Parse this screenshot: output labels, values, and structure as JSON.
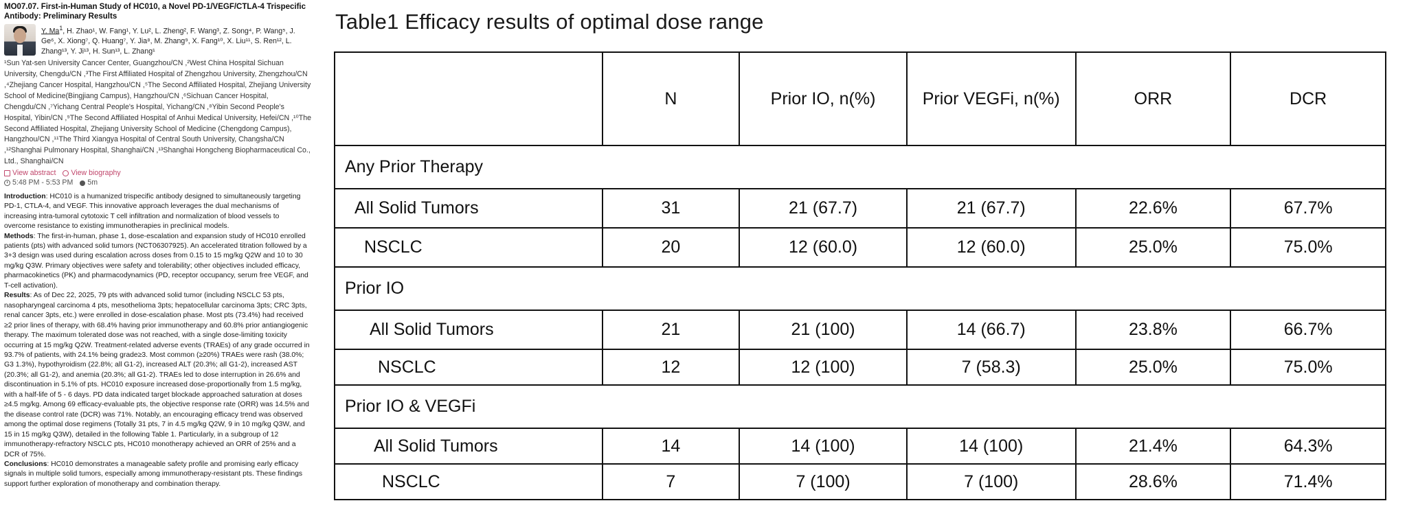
{
  "abstract": {
    "title": "MO07.07.  First-in-Human Study of HC010, a Novel PD-1/VEGF/CTLA-4 Trispecific Antibody: Preliminary Results",
    "first_author": "Y. Ma",
    "first_author_sup": "1",
    "authors_rest": ", H. Zhao¹, W. Fang¹, Y. Lu², L. Zheng², F. Wang³, Z. Song⁴, P. Wang⁵, J. Ge⁶, X. Xiong⁷, Q. Huang⁷, Y. Jia⁸, M. Zhang⁹, X. Fang¹⁰, X. Liu¹¹, S. Ren¹², L. Zhang¹³, Y. Ji¹³, H. Sun¹³, L. Zhang¹",
    "affiliations": "¹Sun Yat-sen University Cancer Center, Guangzhou/CN ,²West China Hospital Sichuan University, Chengdu/CN ,³The First Affiliated Hospital of Zhengzhou University, Zhengzhou/CN ,⁴Zhejiang Cancer Hospital, Hangzhou/CN ,⁵The Second Affiliated Hospital, Zhejiang University School of Medicine(Bingjiang Campus), Hangzhou/CN ,⁶Sichuan Cancer Hospital, Chengdu/CN ,⁷Yichang Central People's Hospital, Yichang/CN ,⁸Yibin Second People's Hospital, Yibin/CN ,⁹The Second Affiliated Hospital of Anhui Medical University, Hefei/CN ,¹⁰The Second Affiliated Hospital, Zhejiang University School of Medicine (Chengdong Campus), Hangzhou/CN ,¹¹The Third Xiangya Hospital of Central South University, Changsha/CN ,¹²Shanghai Pulmonary Hospital, Shanghai/CN ,¹³Shanghai Hongcheng Biopharmaceutical Co., Ltd., Shanghai/CN",
    "time": "5:48 PM - 5:53 PM",
    "duration": "5m",
    "view_abstract": "View abstract",
    "view_biography": "View biography",
    "intro_label": "Introduction",
    "intro_text": ": HC010 is a humanized trispecific antibody designed to simultaneously targeting PD-1, CTLA-4, and VEGF. This innovative approach leverages the dual mechanisms of increasing intra-tumoral cytotoxic T cell infiltration and normalization of blood vessels to overcome resistance to existing immunotherapies in preclinical models.",
    "methods_label": "Methods",
    "methods_text": ": The first-in-human, phase 1, dose-escalation and expansion study of HC010 enrolled patients (pts) with advanced solid tumors (NCT06307925). An accelerated titration followed by a 3+3 design was used during escalation across doses from 0.15 to 15 mg/kg Q2W and 10 to 30 mg/kg Q3W. Primary objectives were safety and tolerability; other objectives included efficacy, pharmacokinetics (PK) and pharmacodynamics (PD, receptor occupancy, serum free VEGF, and T-cell activation).",
    "results_label": "Results",
    "results_text": ": As of Dec 22, 2025, 79 pts with advanced solid tumor (including NSCLC 53 pts, nasopharyngeal carcinoma 4 pts, mesothelioma 3pts; hepatocellular carcinoma 3pts; CRC 3pts, renal cancer 3pts, etc.) were enrolled in dose-escalation phase. Most pts (73.4%) had received ≥2 prior lines of therapy, with 68.4% having prior immunotherapy and 60.8% prior antiangiogenic therapy. The maximum tolerated dose was not reached, with a single dose-limiting toxicity occurring at 15 mg/kg Q2W. Treatment-related adverse events (TRAEs) of any grade occurred in 93.7% of patients, with 24.1% being grade≥3. Most common (≥20%) TRAEs were rash (38.0%; G3 1.3%), hypothyroidism (22.8%; all G1-2), increased ALT (20.3%; all G1-2), increased AST (20.3%; all G1-2), and anemia (20.3%; all G1-2). TRAEs led to dose interruption in 26.6% and discontinuation in 5.1% of pts. HC010 exposure increased dose-proportionally from 1.5 mg/kg, with a half-life of 5 - 6 days. PD data indicated target blockade approached saturation at doses ≥4.5 mg/kg. Among 69 efficacy-evaluable pts, the objective response rate (ORR) was 14.5% and the disease control rate (DCR) was 71%. Notably, an encouraging efficacy trend was observed among the optimal dose regimens (Totally 31 pts, 7 in 4.5 mg/kg Q2W, 9 in 10 mg/kg Q3W, and 15 in 15 mg/kg Q3W), detailed in the following Table 1. Particularly, in a subgroup of 12 immunotherapy-refractory NSCLC pts, HC010 monotherapy achieved an ORR of 25% and a DCR of 75%.",
    "conclusions_label": "Conclusions",
    "conclusions_text": ": HC010 demonstrates a manageable safety profile and promising early efficacy signals in multiple solid tumors, especially among immunotherapy-resistant pts. These findings support further exploration of monotherapy and combination therapy."
  },
  "table": {
    "title": "Table1 Efficacy results of optimal dose range",
    "headers": [
      "",
      "N",
      "Prior IO, n(%)",
      "Prior VEGFi, n(%)",
      "ORR",
      "DCR"
    ],
    "groups": [
      {
        "name": "Any Prior Therapy",
        "rows": [
          [
            "All Solid Tumors",
            "31",
            "21 (67.7)",
            "21 (67.7)",
            "22.6%",
            "67.7%"
          ],
          [
            "NSCLC",
            "20",
            "12 (60.0)",
            "12 (60.0)",
            "25.0%",
            "75.0%"
          ]
        ]
      },
      {
        "name": "Prior IO",
        "rows": [
          [
            "All Solid Tumors",
            "21",
            "21 (100)",
            "14 (66.7)",
            "23.8%",
            "66.7%"
          ],
          [
            "NSCLC",
            "12",
            "12 (100)",
            "7 (58.3)",
            "25.0%",
            "75.0%"
          ]
        ]
      },
      {
        "name": "Prior IO & VEGFi",
        "rows": [
          [
            "All Solid Tumors",
            "14",
            "14 (100)",
            "14 (100)",
            "21.4%",
            "64.3%"
          ],
          [
            "NSCLC",
            "7",
            "7 (100)",
            "7 (100)",
            "28.6%",
            "71.4%"
          ]
        ]
      }
    ]
  }
}
